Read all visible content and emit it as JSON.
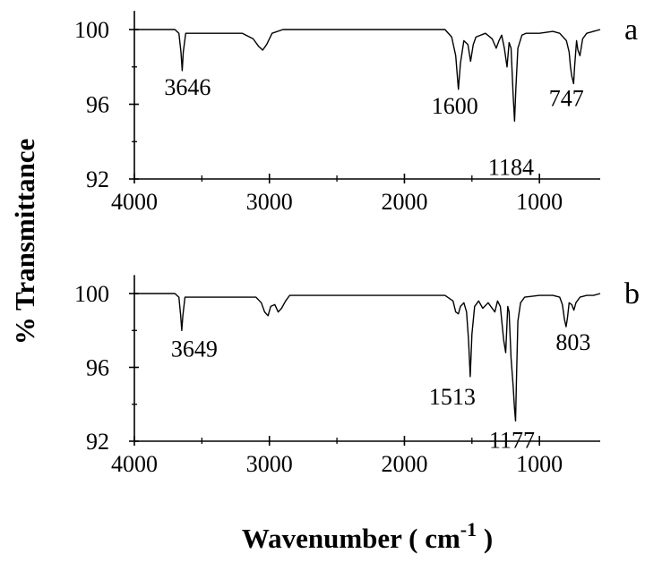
{
  "chart_data": [
    {
      "type": "line",
      "panel_label": "a",
      "ylabel": "% Transmittance",
      "xlabel": "Wavenumber ( cm",
      "xlabel_sup": "-1",
      "xlabel_tail": " )",
      "xlim": [
        4000,
        550
      ],
      "ylim": [
        92,
        101
      ],
      "x_ticks": [
        4000,
        3000,
        2000,
        1000
      ],
      "x_tick_labels": [
        "4000",
        "3000",
        "2000",
        "1000"
      ],
      "y_ticks": [
        100,
        96,
        92
      ],
      "y_tick_labels": [
        "100",
        "96",
        "92"
      ],
      "grid": false,
      "series": [
        {
          "x": [
            4000,
            3700,
            3670,
            3655,
            3646,
            3638,
            3620,
            3200,
            3120,
            3080,
            3050,
            3020,
            2980,
            2900,
            1700,
            1650,
            1620,
            1600,
            1585,
            1560,
            1530,
            1510,
            1490,
            1470,
            1400,
            1350,
            1320,
            1300,
            1280,
            1260,
            1240,
            1225,
            1210,
            1195,
            1184,
            1175,
            1160,
            1130,
            1100,
            1000,
            900,
            850,
            800,
            780,
            770,
            760,
            747,
            740,
            725,
            715,
            700,
            680,
            650,
            600,
            550
          ],
          "y": [
            100,
            100,
            99.8,
            98.8,
            97.8,
            98.8,
            99.8,
            99.8,
            99.5,
            99.1,
            98.9,
            99.2,
            99.8,
            100,
            100,
            99.6,
            98.6,
            96.8,
            98.2,
            99.4,
            99.2,
            98.3,
            99.2,
            99.6,
            99.8,
            99.5,
            99.0,
            99.4,
            99.7,
            99.0,
            98.0,
            99.3,
            99.0,
            96.5,
            95.1,
            96.8,
            99.0,
            99.7,
            99.8,
            99.8,
            99.9,
            99.8,
            99.4,
            98.8,
            98.0,
            97.5,
            97.1,
            98.0,
            99.4,
            98.9,
            98.6,
            99.5,
            99.8,
            99.9,
            100
          ]
        }
      ],
      "annotations": [
        {
          "text": "3646",
          "x": 3646
        },
        {
          "text": "1600",
          "x": 1600
        },
        {
          "text": "1184",
          "x": 1184
        },
        {
          "text": "747",
          "x": 747
        }
      ]
    },
    {
      "type": "line",
      "panel_label": "b",
      "xlim": [
        4000,
        550
      ],
      "ylim": [
        92,
        101
      ],
      "x_ticks": [
        4000,
        3000,
        2000,
        1000
      ],
      "x_tick_labels": [
        "4000",
        "3000",
        "2000",
        "1000"
      ],
      "y_ticks": [
        100,
        96,
        92
      ],
      "y_tick_labels": [
        "100",
        "96",
        "92"
      ],
      "grid": false,
      "series": [
        {
          "x": [
            4000,
            3700,
            3670,
            3657,
            3649,
            3641,
            3625,
            3100,
            3060,
            3035,
            3010,
            2990,
            2960,
            2935,
            2910,
            2880,
            2850,
            1700,
            1640,
            1620,
            1600,
            1585,
            1560,
            1540,
            1525,
            1513,
            1500,
            1480,
            1450,
            1420,
            1380,
            1330,
            1310,
            1290,
            1265,
            1250,
            1235,
            1225,
            1210,
            1195,
            1185,
            1177,
            1170,
            1160,
            1140,
            1110,
            1000,
            900,
            850,
            830,
            815,
            803,
            792,
            780,
            760,
            745,
            730,
            700,
            650,
            600,
            550
          ],
          "y": [
            100,
            100,
            99.8,
            98.8,
            98.0,
            98.8,
            99.8,
            99.8,
            99.5,
            99.0,
            98.8,
            99.3,
            99.4,
            99.0,
            99.2,
            99.6,
            99.9,
            99.9,
            99.6,
            99.0,
            98.9,
            99.3,
            99.5,
            99.0,
            97.5,
            95.5,
            97.8,
            99.3,
            99.6,
            99.2,
            99.5,
            99.0,
            99.6,
            99.3,
            97.5,
            96.8,
            99.3,
            99.0,
            96.5,
            95.0,
            93.8,
            93.1,
            95.5,
            98.5,
            99.5,
            99.8,
            99.9,
            99.9,
            99.8,
            99.4,
            98.6,
            98.2,
            98.7,
            99.5,
            99.4,
            99.1,
            99.5,
            99.8,
            99.9,
            99.9,
            100
          ]
        }
      ],
      "annotations": [
        {
          "text": "3649",
          "x": 3649
        },
        {
          "text": "1513",
          "x": 1513
        },
        {
          "text": "1177",
          "x": 1177
        },
        {
          "text": "803",
          "x": 803
        }
      ]
    }
  ]
}
